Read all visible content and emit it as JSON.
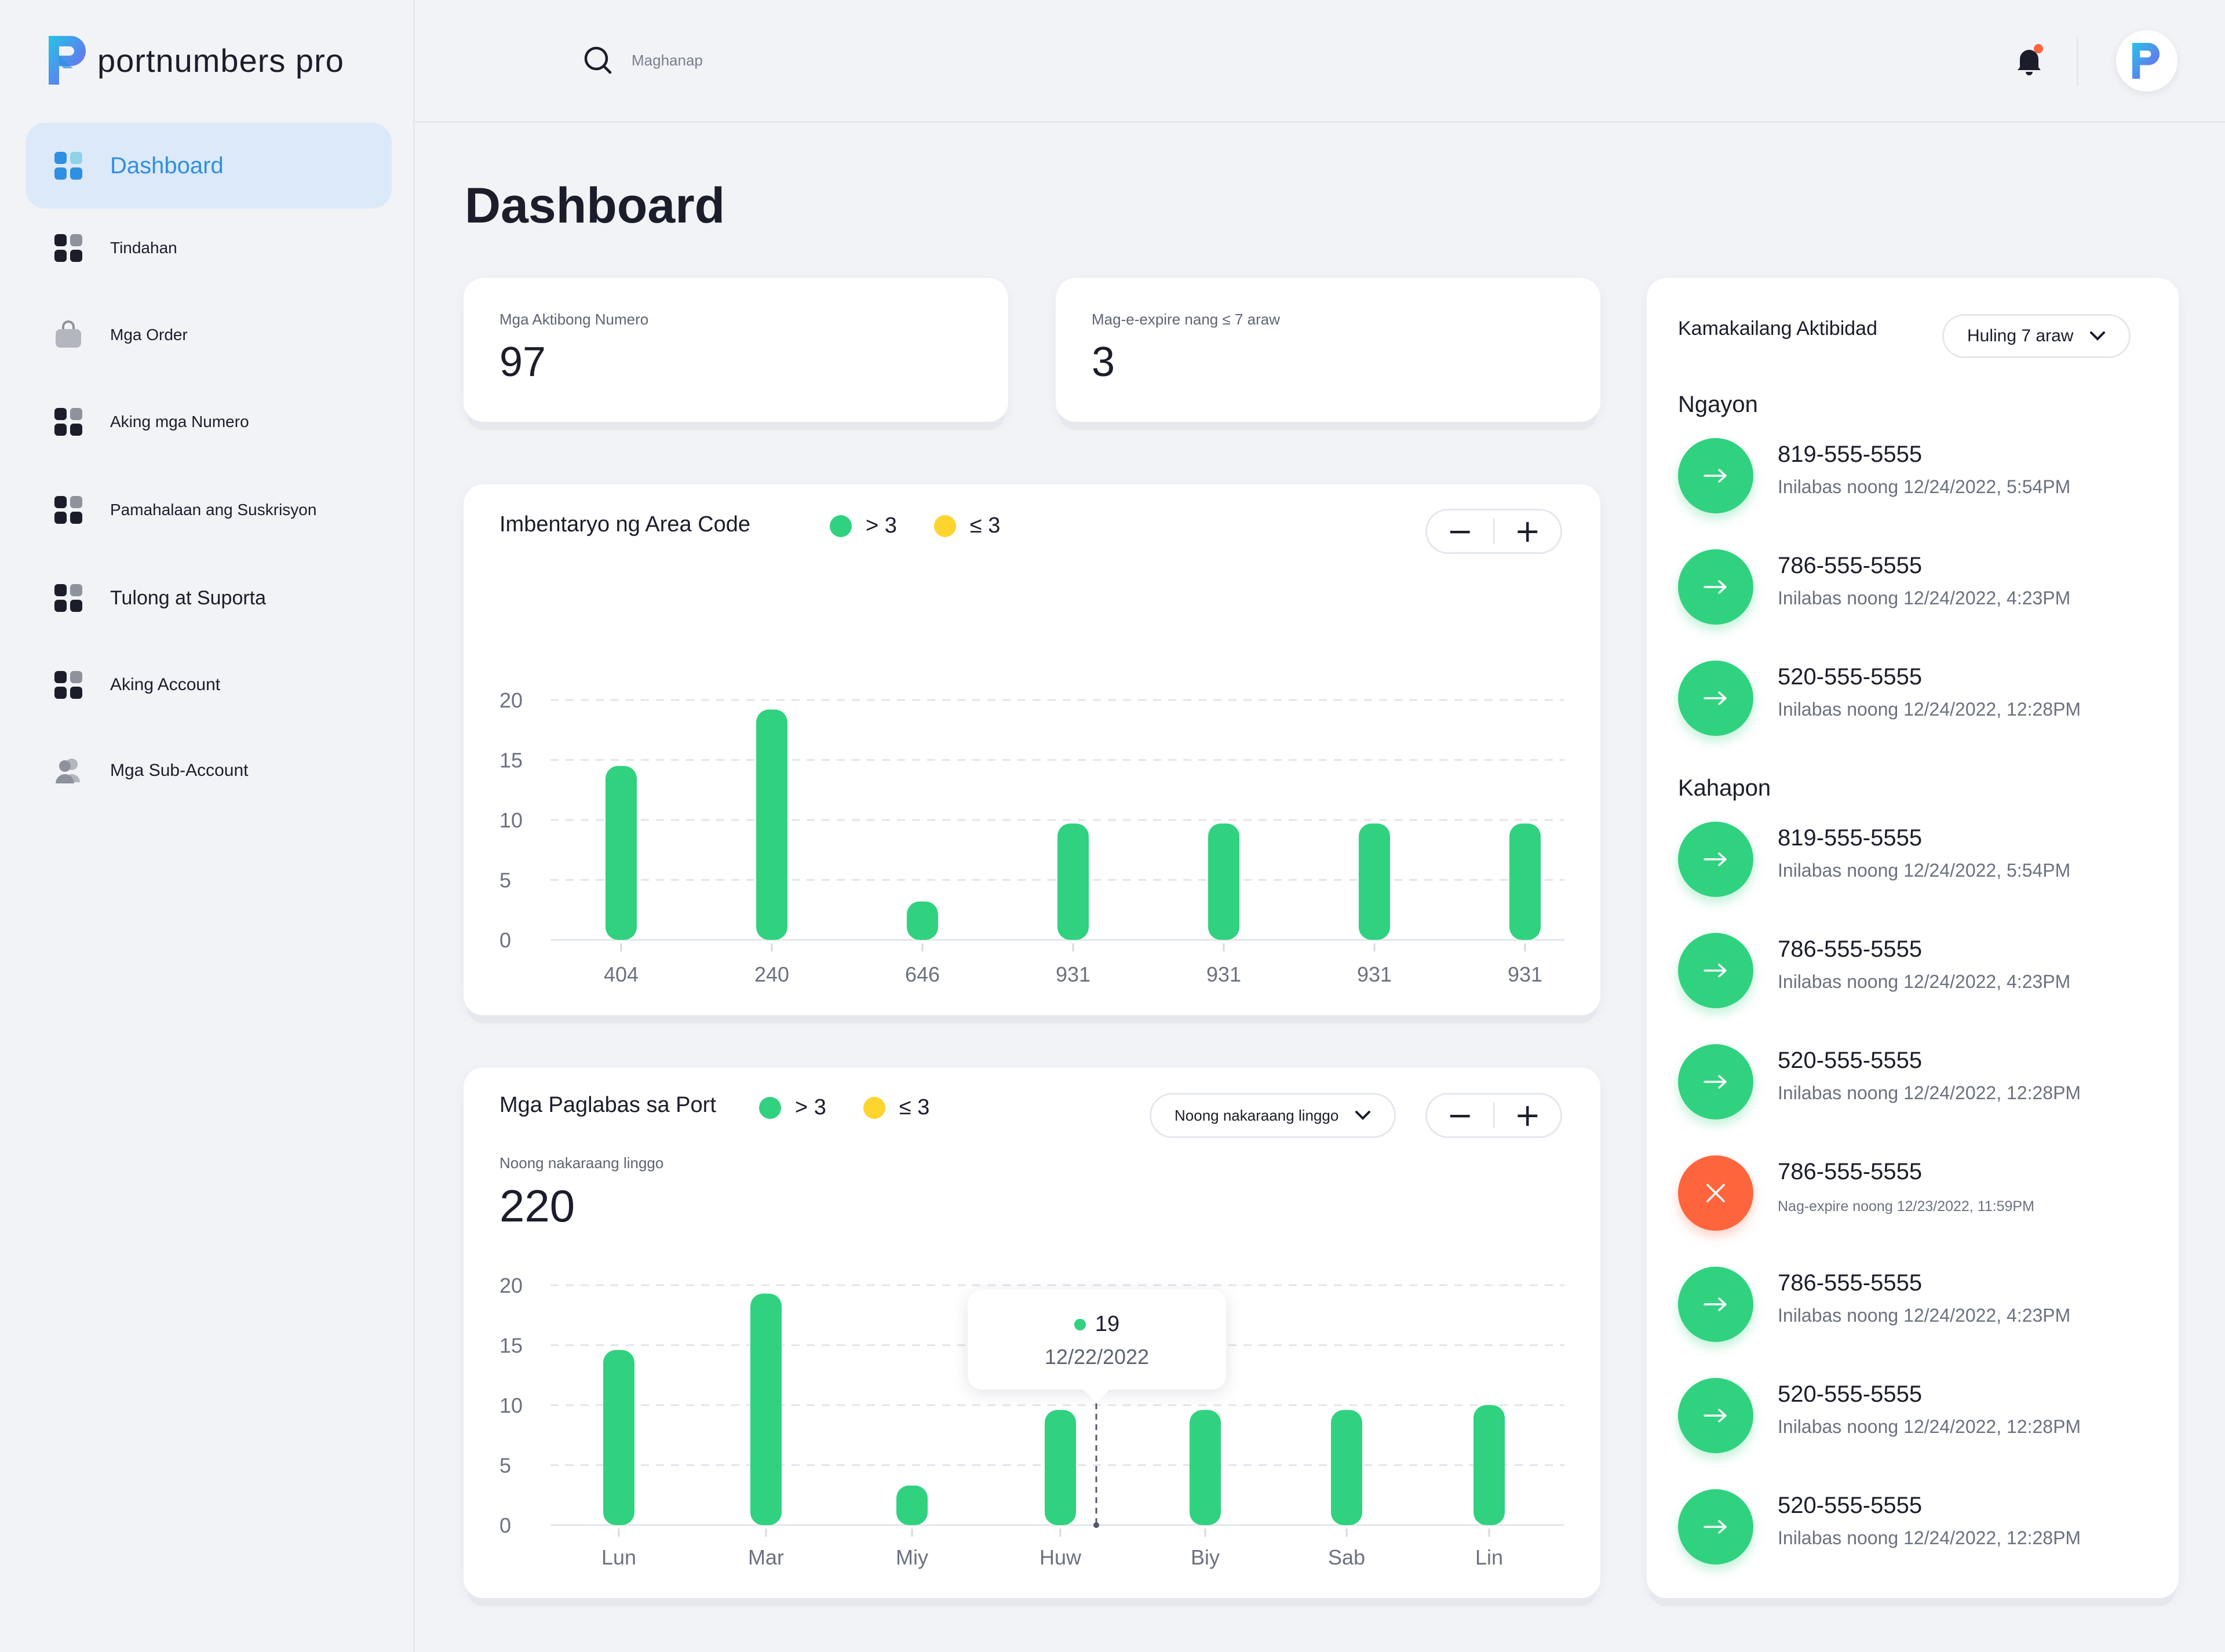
{
  "app": {
    "logo_text": "portnumbers pro"
  },
  "colors": {
    "accent": "#2f8fe0",
    "green": "#30d27f",
    "yellow": "#fed42f",
    "red": "#ff653d",
    "bg": "#f1f3f7"
  },
  "sidebar": {
    "items": [
      {
        "label": "Dashboard",
        "icon": "dashboard-grid-icon",
        "active": true
      },
      {
        "label": "Tindahan",
        "icon": "store-grid-icon"
      },
      {
        "label": "Mga Order",
        "icon": "shopping-bag-icon"
      },
      {
        "label": "Aking mga Numero",
        "icon": "numbers-grid-icon"
      },
      {
        "label": "Pamahalaan ang Suskrisyon",
        "icon": "subscription-grid-icon"
      },
      {
        "label": "Tulong at Suporta",
        "icon": "support-grid-icon"
      },
      {
        "label": "Aking Account",
        "icon": "account-grid-icon"
      },
      {
        "label": "Mga Sub-Account",
        "icon": "users-icon"
      }
    ]
  },
  "header": {
    "search_placeholder": "Maghanap",
    "notification_icon": "bell-icon",
    "has_notification_dot": true
  },
  "page": {
    "title": "Dashboard"
  },
  "stats": {
    "active_numbers": {
      "label": "Mga Aktibong Numero",
      "value": "97"
    },
    "expiring": {
      "label": "Mag-e-expire nang ≤ 7 araw",
      "value": "3"
    }
  },
  "inventory_chart": {
    "title": "Imbentaryo ng Area Code",
    "legend": [
      {
        "label": "> 3",
        "color": "#30d27f"
      },
      {
        "label": "≤ 3",
        "color": "#fed42f"
      }
    ],
    "zoom_out": "−",
    "zoom_in": "+"
  },
  "releases_chart": {
    "title": "Mga Paglabas sa Port",
    "legend": [
      {
        "label": "> 3",
        "color": "#30d27f"
      },
      {
        "label": "≤ 3",
        "color": "#fed42f"
      }
    ],
    "period_dropdown": "Noong nakaraang linggo",
    "sub_label": "Noong nakaraang linggo",
    "total": "220",
    "tooltip": {
      "value": "19",
      "date": "12/22/2022"
    },
    "zoom_out": "−",
    "zoom_in": "+"
  },
  "chart_data": [
    {
      "type": "bar",
      "title": "Imbentaryo ng Area Code",
      "categories": [
        "404",
        "240",
        "646",
        "931",
        "931",
        "931",
        "931"
      ],
      "values": [
        14.5,
        19.2,
        3.2,
        9.7,
        9.7,
        9.7,
        9.7
      ],
      "ylim": [
        0,
        20
      ],
      "yticks": [
        "0",
        "5",
        "10",
        "15",
        "20"
      ],
      "grid": true,
      "legend_position": "top",
      "threshold": 3
    },
    {
      "type": "bar",
      "title": "Mga Paglabas sa Port",
      "categories": [
        "Lun",
        "Mar",
        "Miy",
        "Huw",
        "Biy",
        "Sab",
        "Lin"
      ],
      "values": [
        14.6,
        19.3,
        3.3,
        9.6,
        9.6,
        9.6,
        10.0
      ],
      "ylim": [
        0,
        20
      ],
      "yticks": [
        "0",
        "5",
        "10",
        "15",
        "20"
      ],
      "grid": true,
      "legend_position": "top",
      "threshold": 3
    }
  ],
  "activity": {
    "title": "Kamakailang Aktibidad",
    "range_dropdown": "Huling 7 araw",
    "sections": [
      {
        "label": "Ngayon",
        "items": [
          {
            "number": "819-555-5555",
            "detail": "Inilabas noong 12/24/2022, 5:54PM",
            "status": "released"
          },
          {
            "number": "786-555-5555",
            "detail": "Inilabas noong 12/24/2022, 4:23PM",
            "status": "released"
          },
          {
            "number": "520-555-5555",
            "detail": "Inilabas noong 12/24/2022, 12:28PM",
            "status": "released"
          }
        ]
      },
      {
        "label": "Kahapon",
        "items": [
          {
            "number": "819-555-5555",
            "detail": "Inilabas noong 12/24/2022, 5:54PM",
            "status": "released"
          },
          {
            "number": "786-555-5555",
            "detail": "Inilabas noong 12/24/2022, 4:23PM",
            "status": "released"
          },
          {
            "number": "520-555-5555",
            "detail": "Inilabas noong 12/24/2022, 12:28PM",
            "status": "released"
          },
          {
            "number": "786-555-5555",
            "detail": "Nag-expire noong 12/23/2022, 11:59PM",
            "status": "expired"
          },
          {
            "number": "786-555-5555",
            "detail": "Inilabas noong 12/24/2022, 4:23PM",
            "status": "released"
          },
          {
            "number": "520-555-5555",
            "detail": "Inilabas noong 12/24/2022, 12:28PM",
            "status": "released"
          },
          {
            "number": "520-555-5555",
            "detail": "Inilabas noong 12/24/2022, 12:28PM",
            "status": "released"
          }
        ]
      }
    ]
  }
}
